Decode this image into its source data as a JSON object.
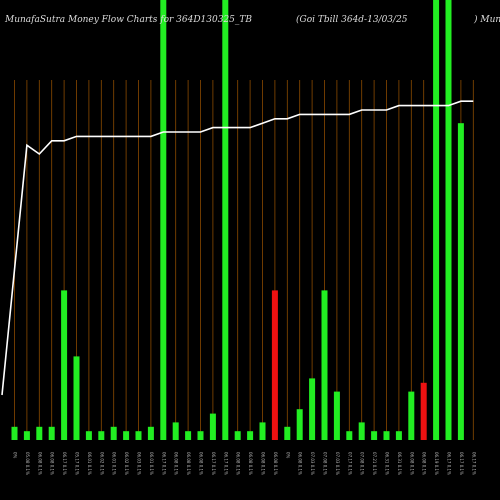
{
  "header": {
    "brand": "MunafaSutra  Money Flow  Charts for 364D130325_TB",
    "security": "(Goi   Tbill 364d-13/03/25",
    "right_fragment": ") Muna"
  },
  "colors": {
    "background": "#000000",
    "grid_line": "#8a4a00",
    "up_bar": "#22ee22",
    "down_bar": "#ee1111",
    "price_line": "#ffffff"
  },
  "chart_data": {
    "type": "bar",
    "title": "MunafaSutra  Money Flow  Charts for 364D130325_TB",
    "grid": true,
    "categories": [
      "0",
      "1",
      "2",
      "3",
      "4",
      "5",
      "6",
      "7",
      "8",
      "9",
      "10",
      "11",
      "12",
      "13",
      "14",
      "15",
      "16",
      "17",
      "18",
      "19",
      "20",
      "21",
      "22",
      "23",
      "24",
      "25",
      "26",
      "27",
      "28",
      "29",
      "30",
      "31",
      "32",
      "33",
      "34",
      "35",
      "36",
      "37"
    ],
    "tick_labels": [
      "0%",
      "05.08 0.1%",
      "06.08 0.1%",
      "06.08 0.1%",
      "06.17 0.1%",
      "05.17 0.1%",
      "06.01 0.1%",
      "06.02 0.1%",
      "06.01 0.1%",
      "06.02 0.1%",
      "06.03 0.1%",
      "06.01 0.1%",
      "06.17 0.1%",
      "06.08 0.1%",
      "06.08 0.1%",
      "06.08 0.1%",
      "06.17 0.1%",
      "06.17 0.1%",
      "06.08 0.1%",
      "06.08 0.1%",
      "06.08 0.1%",
      "06.08 0.1%",
      "0%",
      "06.08 0.1%",
      "07.03 0.1%",
      "07.08 0.1%",
      "07.03 0.1%",
      "07.17 0.1%",
      "07.08 0.1%",
      "07.21 0.1%",
      "06.31 0.1%",
      "06.31 0.1%",
      "06.08 0.1%",
      "06.08 0.1%",
      "06.19 0.1%",
      "06.17 0.1%",
      "06.17 0.1%",
      "06.17 0.1%"
    ],
    "series": [
      {
        "type": "bar",
        "values": [
          3,
          2,
          3,
          3,
          34,
          19,
          2,
          2,
          3,
          2,
          2,
          3,
          100,
          4,
          2,
          2,
          6,
          100,
          2,
          2,
          4,
          34,
          3,
          7,
          14,
          34,
          11,
          2,
          4,
          2,
          2,
          2,
          11,
          13,
          100,
          100,
          72,
          0
        ],
        "directions": [
          "up",
          "up",
          "up",
          "up",
          "up",
          "up",
          "up",
          "up",
          "up",
          "up",
          "up",
          "up",
          "up",
          "up",
          "up",
          "up",
          "up",
          "up",
          "up",
          "up",
          "up",
          "down",
          "up",
          "up",
          "up",
          "up",
          "up",
          "up",
          "up",
          "up",
          "up",
          "up",
          "up",
          "down",
          "up",
          "up",
          "up",
          "up"
        ]
      },
      {
        "type": "line",
        "values": [
          null,
          67,
          65,
          68,
          68,
          69,
          69,
          69,
          69,
          69,
          69,
          69,
          70,
          70,
          70,
          70,
          71,
          71,
          71,
          71,
          72,
          73,
          73,
          74,
          74,
          74,
          74,
          74,
          75,
          75,
          75,
          76,
          76,
          76,
          76,
          76,
          77,
          77
        ]
      }
    ],
    "ylim": [
      0,
      100
    ]
  }
}
